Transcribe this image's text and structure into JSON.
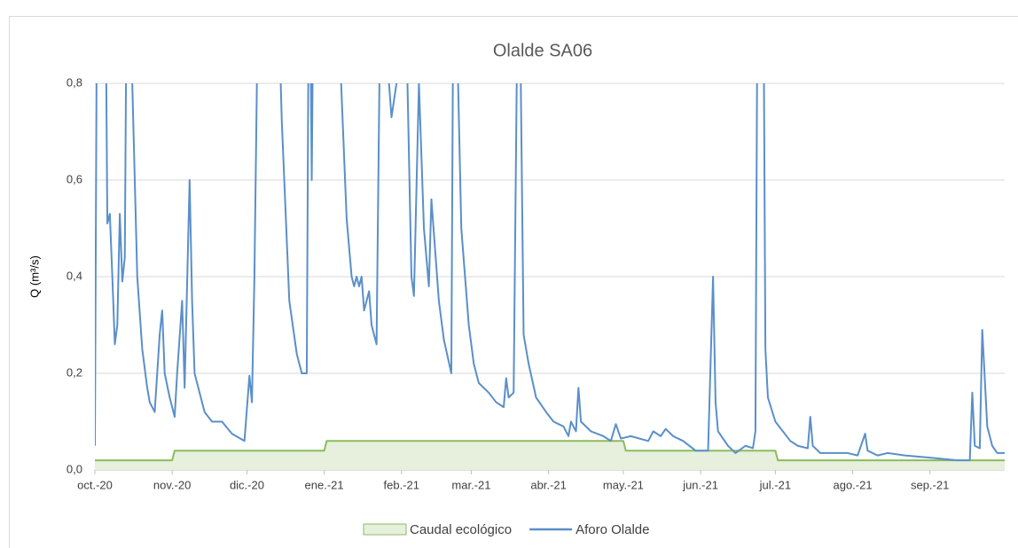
{
  "chart_data": {
    "type": "line",
    "title": "Olalde SA06",
    "y_label": "Q (m³/s)",
    "xlim": [
      0,
      365
    ],
    "xticks": [
      {
        "value": 0,
        "label": "oct.-20"
      },
      {
        "value": 31,
        "label": "nov.-20"
      },
      {
        "value": 61,
        "label": "dic.-20"
      },
      {
        "value": 92,
        "label": "ene.-21"
      },
      {
        "value": 123,
        "label": "feb.-21"
      },
      {
        "value": 151,
        "label": "mar.-21"
      },
      {
        "value": 182,
        "label": "abr.-21"
      },
      {
        "value": 212,
        "label": "may.-21"
      },
      {
        "value": 243,
        "label": "jun.-21"
      },
      {
        "value": 273,
        "label": "jul.-21"
      },
      {
        "value": 304,
        "label": "ago.-21"
      },
      {
        "value": 335,
        "label": "sep.-21"
      }
    ],
    "ylim": [
      0,
      0.8
    ],
    "yticks": [
      {
        "value": 0,
        "label": "0,0"
      },
      {
        "value": 0.2,
        "label": "0,2"
      },
      {
        "value": 0.4,
        "label": "0,4"
      },
      {
        "value": 0.6,
        "label": "0,6"
      },
      {
        "value": 0.8,
        "label": "0,8"
      }
    ],
    "grid": true,
    "legend": "bottom",
    "series": [
      {
        "name": "Caudal ecológico",
        "kind": "area",
        "color": "#8cbb5e",
        "fill": "#e6f0dc",
        "x": [
          0,
          31,
          32,
          92,
          93,
          212,
          213,
          273,
          274,
          365
        ],
        "values": [
          0.02,
          0.02,
          0.04,
          0.04,
          0.06,
          0.06,
          0.04,
          0.04,
          0.02,
          0.02
        ]
      },
      {
        "name": "Aforo Olalde",
        "kind": "line",
        "color": "#5b8fc9",
        "x": [
          0,
          1,
          4,
          5,
          6,
          7,
          8,
          9,
          10,
          11,
          12,
          13,
          15,
          17,
          19,
          21,
          22,
          24,
          26,
          27,
          28,
          30,
          32,
          33,
          35,
          36,
          38,
          39,
          40,
          44,
          47,
          51,
          55,
          60,
          62,
          63,
          64,
          66,
          70,
          74,
          75,
          78,
          81,
          83,
          85,
          86,
          87,
          88,
          98,
          101,
          103,
          104,
          105,
          106,
          107,
          108,
          110,
          111,
          113,
          115,
          118,
          119,
          121,
          123,
          125,
          127,
          128,
          130,
          132,
          134,
          135,
          138,
          140,
          143,
          144,
          147,
          150,
          152,
          154,
          158,
          161,
          164,
          165,
          166,
          168,
          170,
          172,
          174,
          177,
          181,
          184,
          188,
          190,
          191,
          193,
          194,
          195,
          199,
          204,
          207,
          209,
          211,
          215,
          222,
          224,
          227,
          229,
          232,
          236,
          241,
          246,
          248,
          249,
          250,
          254,
          257,
          261,
          264,
          265,
          266,
          268,
          269,
          270,
          273,
          279,
          282,
          286,
          287,
          288,
          291,
          296,
          302,
          306,
          309,
          310,
          314,
          318,
          325,
          336,
          346,
          351,
          352,
          353,
          355,
          356,
          358,
          360,
          362,
          365
        ],
        "values": [
          0.05,
          1.2,
          1.2,
          0.51,
          0.53,
          0.4,
          0.26,
          0.3,
          0.53,
          0.39,
          0.44,
          1.2,
          0.8,
          0.4,
          0.25,
          0.17,
          0.14,
          0.12,
          0.28,
          0.33,
          0.2,
          0.15,
          0.11,
          0.2,
          0.35,
          0.17,
          0.6,
          0.35,
          0.2,
          0.12,
          0.1,
          0.1,
          0.075,
          0.06,
          0.195,
          0.14,
          0.4,
          1.2,
          1.5,
          0.9,
          0.72,
          0.35,
          0.24,
          0.2,
          0.2,
          1.2,
          0.6,
          1.2,
          0.9,
          0.52,
          0.4,
          0.38,
          0.4,
          0.38,
          0.4,
          0.33,
          0.37,
          0.3,
          0.26,
          1.2,
          0.8,
          0.73,
          0.8,
          1.2,
          0.9,
          0.4,
          0.36,
          0.8,
          0.5,
          0.38,
          0.56,
          0.35,
          0.27,
          0.2,
          1.2,
          0.5,
          0.3,
          0.22,
          0.18,
          0.16,
          0.14,
          0.13,
          0.19,
          0.15,
          0.16,
          1.2,
          0.28,
          0.22,
          0.15,
          0.12,
          0.1,
          0.09,
          0.07,
          0.1,
          0.08,
          0.17,
          0.1,
          0.08,
          0.07,
          0.06,
          0.095,
          0.065,
          0.07,
          0.06,
          0.08,
          0.07,
          0.085,
          0.07,
          0.06,
          0.04,
          0.04,
          0.4,
          0.14,
          0.08,
          0.05,
          0.035,
          0.05,
          0.045,
          0.08,
          1.2,
          1.2,
          0.25,
          0.15,
          0.1,
          0.06,
          0.05,
          0.045,
          0.11,
          0.05,
          0.035,
          0.035,
          0.035,
          0.03,
          0.075,
          0.04,
          0.03,
          0.035,
          0.03,
          0.025,
          0.02,
          0.02,
          0.16,
          0.05,
          0.045,
          0.29,
          0.09,
          0.05,
          0.035,
          0.035
        ]
      }
    ]
  }
}
